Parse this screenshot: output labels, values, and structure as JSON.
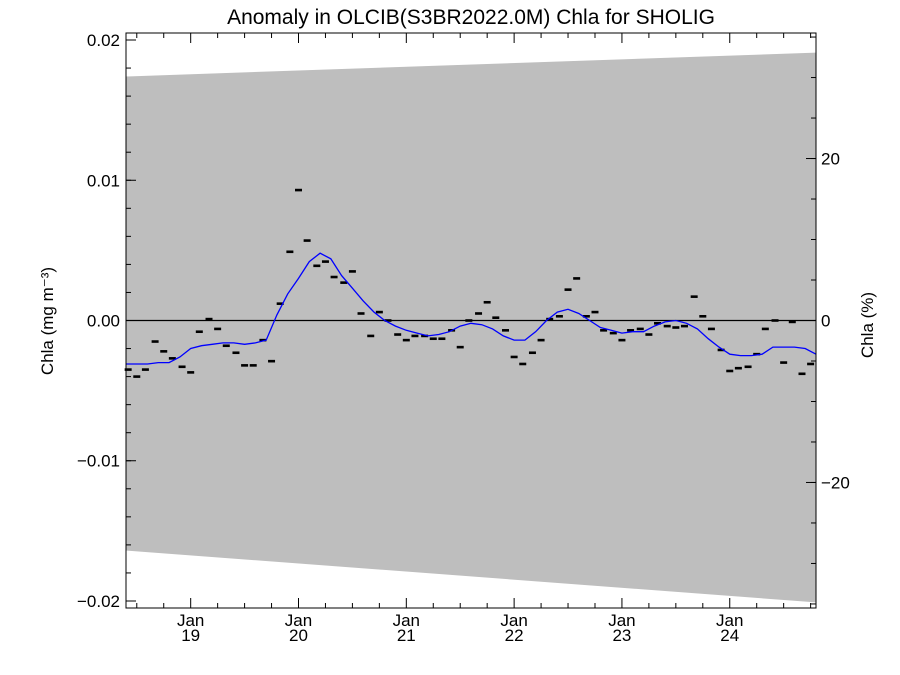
{
  "chart_data": {
    "type": "line",
    "title": "Anomaly in OLCIB(S3BR2022.0M) Chla for SHOLIG",
    "ylabel_left": "Chla (mg m⁻³)",
    "ylabel_right": "Chla (%)",
    "xlim": [
      2018.4,
      2024.8
    ],
    "ylim": [
      -0.0205,
      0.0205
    ],
    "ylim_right": [
      -35.5,
      35.5
    ],
    "x_ticks": [
      {
        "month": "Jan",
        "year": "19",
        "x": 2019.0
      },
      {
        "month": "Jan",
        "year": "20",
        "x": 2020.0
      },
      {
        "month": "Jan",
        "year": "21",
        "x": 2021.0
      },
      {
        "month": "Jan",
        "year": "22",
        "x": 2022.0
      },
      {
        "month": "Jan",
        "year": "23",
        "x": 2023.0
      },
      {
        "month": "Jan",
        "year": "24",
        "x": 2024.0
      }
    ],
    "y_ticks": [
      {
        "label": "0.02",
        "value": 0.02
      },
      {
        "label": "0.01",
        "value": 0.01
      },
      {
        "label": "0.00",
        "value": 0.0
      },
      {
        "label": "−0.01",
        "value": -0.01
      },
      {
        "label": "−0.02",
        "value": -0.02
      }
    ],
    "y_right_ticks": [
      {
        "label": "20",
        "value": 20
      },
      {
        "label": "0",
        "value": 0
      },
      {
        "label": "−20",
        "value": -20
      }
    ],
    "uncertainty_band": {
      "color": "#bebebe",
      "x": [
        2018.4,
        2024.8
      ],
      "upper": [
        0.0174,
        0.0191
      ],
      "lower": [
        -0.0164,
        -0.0201
      ]
    },
    "monthly_anomaly": {
      "color": "#000000",
      "x": [
        2018.42,
        2018.5,
        2018.58,
        2018.67,
        2018.75,
        2018.83,
        2018.92,
        2019.0,
        2019.08,
        2019.17,
        2019.25,
        2019.33,
        2019.42,
        2019.5,
        2019.58,
        2019.67,
        2019.75,
        2019.83,
        2019.92,
        2020.0,
        2020.08,
        2020.17,
        2020.25,
        2020.33,
        2020.42,
        2020.5,
        2020.58,
        2020.67,
        2020.75,
        2020.83,
        2020.92,
        2021.0,
        2021.08,
        2021.17,
        2021.25,
        2021.33,
        2021.42,
        2021.5,
        2021.58,
        2021.67,
        2021.75,
        2021.83,
        2021.92,
        2022.0,
        2022.08,
        2022.17,
        2022.25,
        2022.33,
        2022.42,
        2022.5,
        2022.58,
        2022.67,
        2022.75,
        2022.83,
        2022.92,
        2023.0,
        2023.08,
        2023.17,
        2023.25,
        2023.33,
        2023.42,
        2023.5,
        2023.58,
        2023.67,
        2023.75,
        2023.83,
        2023.92,
        2024.0,
        2024.08,
        2024.17,
        2024.25,
        2024.33,
        2024.42,
        2024.5,
        2024.58,
        2024.67,
        2024.75
      ],
      "y": [
        -0.0035,
        -0.004,
        -0.0035,
        -0.0015,
        -0.0022,
        -0.0027,
        -0.0033,
        -0.0037,
        -0.0008,
        0.0001,
        -0.0006,
        -0.0018,
        -0.0023,
        -0.0032,
        -0.0032,
        -0.0014,
        -0.0029,
        0.0012,
        0.0049,
        0.0093,
        0.0057,
        0.0039,
        0.0042,
        0.0031,
        0.0027,
        0.0035,
        0.0005,
        -0.0011,
        0.0006,
        0.0,
        -0.001,
        -0.0014,
        -0.0011,
        -0.0011,
        -0.0013,
        -0.0013,
        -0.0007,
        -0.0019,
        0.0,
        0.0005,
        0.0013,
        0.0002,
        -0.0007,
        -0.0026,
        -0.0031,
        -0.0023,
        -0.0014,
        0.0001,
        0.0003,
        0.0022,
        0.003,
        0.0003,
        0.0006,
        -0.0007,
        -0.0009,
        -0.0014,
        -0.0007,
        -0.0006,
        -0.001,
        -0.0002,
        -0.0004,
        -0.0005,
        -0.0004,
        0.0017,
        0.0003,
        -0.0006,
        -0.0021,
        -0.0036,
        -0.0034,
        -0.0033,
        -0.0024,
        -0.0006,
        0.0,
        -0.003,
        -0.0001,
        -0.0038,
        -0.0031
      ]
    },
    "smoothed": {
      "color": "#0000ff",
      "x": [
        2018.4,
        2018.5,
        2018.6,
        2018.7,
        2018.8,
        2018.9,
        2019.0,
        2019.1,
        2019.2,
        2019.3,
        2019.4,
        2019.5,
        2019.6,
        2019.7,
        2019.8,
        2019.9,
        2020.0,
        2020.1,
        2020.2,
        2020.3,
        2020.4,
        2020.5,
        2020.6,
        2020.7,
        2020.8,
        2020.9,
        2021.0,
        2021.1,
        2021.2,
        2021.3,
        2021.4,
        2021.5,
        2021.6,
        2021.7,
        2021.8,
        2021.9,
        2022.0,
        2022.1,
        2022.2,
        2022.3,
        2022.4,
        2022.5,
        2022.6,
        2022.7,
        2022.8,
        2022.9,
        2023.0,
        2023.1,
        2023.2,
        2023.3,
        2023.4,
        2023.5,
        2023.6,
        2023.7,
        2023.8,
        2023.9,
        2024.0,
        2024.1,
        2024.2,
        2024.3,
        2024.4,
        2024.5,
        2024.6,
        2024.7,
        2024.8
      ],
      "y": [
        -0.0031,
        -0.0031,
        -0.0031,
        -0.003,
        -0.003,
        -0.0026,
        -0.002,
        -0.0018,
        -0.0017,
        -0.0016,
        -0.0016,
        -0.0017,
        -0.0016,
        -0.0014,
        0.0004,
        0.0019,
        0.003,
        0.0042,
        0.0048,
        0.0044,
        0.0032,
        0.0023,
        0.0014,
        0.0006,
        0.0,
        -0.0004,
        -0.0007,
        -0.0009,
        -0.0011,
        -0.001,
        -0.0008,
        -0.0004,
        -0.0002,
        -0.0003,
        -0.0006,
        -0.0011,
        -0.0014,
        -0.0014,
        -0.0008,
        0.0,
        0.0006,
        0.0008,
        0.0005,
        0.0,
        -0.0005,
        -0.0007,
        -0.0009,
        -0.0008,
        -0.0008,
        -0.0004,
        -0.0001,
        0.0,
        -0.0002,
        -0.0006,
        -0.0013,
        -0.0019,
        -0.0024,
        -0.0025,
        -0.0025,
        -0.0024,
        -0.0019,
        -0.0019,
        -0.0019,
        -0.002,
        -0.0024
      ]
    },
    "zero_line": 0.0,
    "grid": false,
    "legend": "none"
  }
}
